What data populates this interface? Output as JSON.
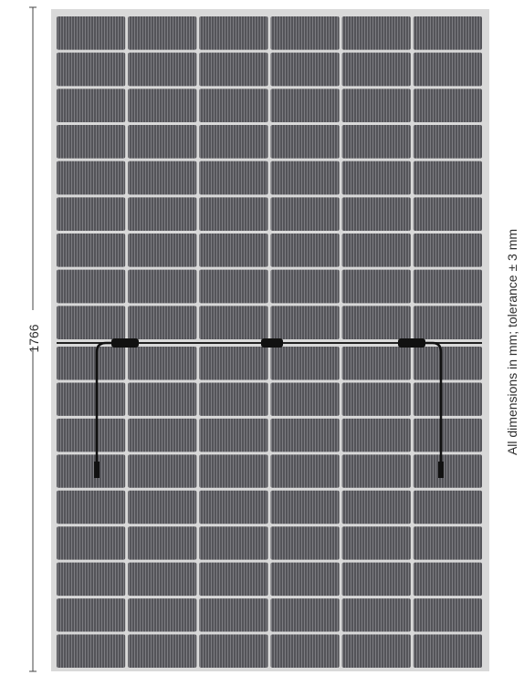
{
  "dimension": {
    "height_label": "1766"
  },
  "note": {
    "text": "All dimensions in mm; tolerance ± 3 mm"
  },
  "panel": {
    "columns": 6,
    "rows_per_half": 9,
    "cell_color": "#545459",
    "cell_stripe_color": "#7d7d82",
    "frame_color": "#d9d9d9",
    "gap_color": "#eeeeee",
    "cable_color": "#111111"
  }
}
